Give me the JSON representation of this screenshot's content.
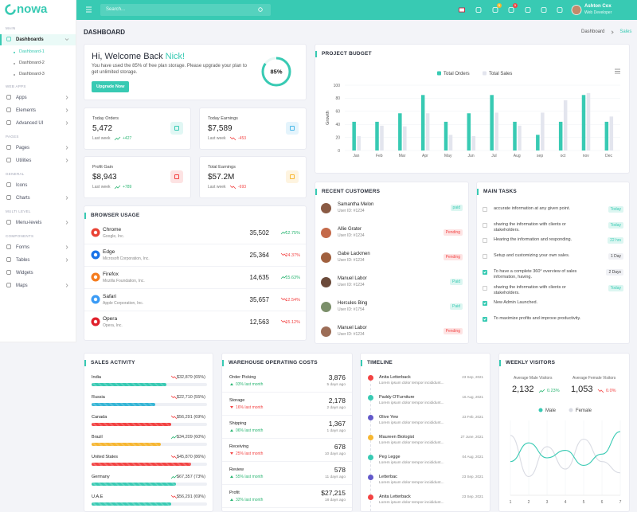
{
  "header": {
    "logo": "nowa",
    "search": "Search...",
    "cart_badge": "5",
    "notif_badge": "5",
    "user_name": "Ashton Cox",
    "user_role": "Web Developer"
  },
  "sidebar": {
    "sections": [
      {
        "title": "MAIN",
        "items": [
          {
            "label": "Dashboards",
            "chevron": true,
            "sub": [
              "Dashboard-1",
              "Dashboard-2",
              "Dashboard-3"
            ]
          }
        ]
      },
      {
        "title": "WEB APPS",
        "items": [
          {
            "label": "Apps",
            "chevron": true
          },
          {
            "label": "Elements",
            "chevron": true
          },
          {
            "label": "Advanced UI",
            "chevron": true
          }
        ]
      },
      {
        "title": "PAGES",
        "items": [
          {
            "label": "Pages",
            "chevron": true
          },
          {
            "label": "Utilities",
            "chevron": true
          }
        ]
      },
      {
        "title": "GENERAL",
        "items": [
          {
            "label": "Icons",
            "chevron": false
          },
          {
            "label": "Charts",
            "chevron": true
          }
        ]
      },
      {
        "title": "MULTI LEVEL",
        "items": [
          {
            "label": "Menu-levels",
            "chevron": true
          }
        ]
      },
      {
        "title": "COMPONENTS",
        "items": [
          {
            "label": "Forms",
            "chevron": true
          },
          {
            "label": "Tables",
            "chevron": true
          },
          {
            "label": "Widgets",
            "chevron": false
          },
          {
            "label": "Maps",
            "chevron": true
          }
        ]
      }
    ]
  },
  "page": {
    "title": "DASHBOARD",
    "breadcrumb": [
      "Dashboard",
      "Sales"
    ]
  },
  "welcome": {
    "greeting": "Hi, Welcome Back",
    "name": "Nick!",
    "text": "You have used the 85% of free plan storage. Please upgrade your plan to get unlimited storage.",
    "button": "Upgrade Now",
    "progress": 85,
    "progress_label": "85%"
  },
  "stats": [
    {
      "title": "Today Orders",
      "value": "5,472",
      "period": "Last week",
      "change": "+427",
      "trend": "up",
      "icon_color": "#38cab3"
    },
    {
      "title": "Today Earnings",
      "value": "$7,589",
      "period": "Last week",
      "change": "-453",
      "trend": "down",
      "icon_color": "#4ab8e8"
    },
    {
      "title": "Profit Gain",
      "value": "$8,943",
      "period": "Last week",
      "change": "+789",
      "trend": "up",
      "icon_color": "#f34343"
    },
    {
      "title": "Total Earnings",
      "value": "$57.2M",
      "period": "Last week",
      "change": "-693",
      "trend": "down",
      "icon_color": "#f7b731"
    }
  ],
  "chart_data": [
    {
      "type": "bar",
      "title": "PROJECT BUDGET",
      "categories": [
        "Jan",
        "Feb",
        "Mar",
        "Apr",
        "May",
        "Jun",
        "Jul",
        "Aug",
        "sep",
        "oct",
        "nov",
        "Dec"
      ],
      "series": [
        {
          "name": "Total Orders",
          "color": "#38cab3",
          "values": [
            44,
            44,
            57,
            85,
            44,
            57,
            85,
            44,
            24,
            44,
            85,
            44
          ]
        },
        {
          "name": "Total Sales",
          "color": "#e3e5ee",
          "values": [
            22,
            38,
            37,
            57,
            24,
            22,
            58,
            38,
            58,
            77,
            88,
            52
          ]
        }
      ],
      "ylim": [
        0,
        100
      ],
      "yticks": [
        0,
        20,
        40,
        60,
        80,
        100
      ],
      "ylabel": "Growth",
      "grid": true
    },
    {
      "type": "line",
      "title": "WEEKLY VISITORS",
      "x": [
        1,
        2,
        3,
        4,
        5,
        6,
        7
      ],
      "series": [
        {
          "name": "Male",
          "color": "#38cab3",
          "values": [
            45,
            70,
            50,
            60,
            40,
            55,
            85
          ]
        },
        {
          "name": "Female",
          "color": "#d9dbe3",
          "values": [
            80,
            25,
            65,
            35,
            75,
            45,
            30
          ]
        }
      ],
      "xlim": [
        1,
        7
      ],
      "xticks": [
        1,
        2,
        3,
        4,
        5,
        6,
        7
      ],
      "ylim": [
        0,
        100
      ],
      "grid": true
    }
  ],
  "browser_usage": {
    "title": "BROWSER USAGE",
    "rows": [
      {
        "name": "Chrome",
        "company": "Google, Inc.",
        "count": "35,502",
        "change": "12.75%",
        "trend": "up",
        "color": "#e94335"
      },
      {
        "name": "Edge",
        "company": "Microsoft Corporation, Inc.",
        "count": "25,364",
        "change": "24.37%",
        "trend": "down",
        "color": "#1a73e8"
      },
      {
        "name": "Firefox",
        "company": "Mozilla Foundation, Inc.",
        "count": "14,635",
        "change": "15.63%",
        "trend": "up",
        "color": "#f57c1f"
      },
      {
        "name": "Safari",
        "company": "Apple Corporation, Inc.",
        "count": "35,657",
        "change": "12.54%",
        "trend": "down",
        "color": "#3b9bf5"
      },
      {
        "name": "Opera",
        "company": "Opera, Inc.",
        "count": "12,563",
        "change": "15.12%",
        "trend": "down",
        "color": "#e0202b"
      }
    ]
  },
  "recent_customers": {
    "title": "RECENT CUSTOMERS",
    "rows": [
      {
        "name": "Samantha Melon",
        "id": "User ID: #1234",
        "status": "paid"
      },
      {
        "name": "Allie Grater",
        "id": "User ID: #1234",
        "status": "Pending"
      },
      {
        "name": "Gabe Lackmen",
        "id": "User ID: #1234",
        "status": "Pending"
      },
      {
        "name": "Manuel Labor",
        "id": "User ID: #1234",
        "status": "Paid"
      },
      {
        "name": "Hercules Bing",
        "id": "User ID: #1754",
        "status": "Paid"
      },
      {
        "name": "Manuel Labor",
        "id": "User ID: #1234",
        "status": "Pending"
      }
    ]
  },
  "main_tasks": {
    "title": "MAIN TASKS",
    "rows": [
      {
        "text": "accurate information at any given point.",
        "badge": "Today",
        "checked": false
      },
      {
        "text": "sharing the information with clients or stakeholders.",
        "badge": "Today",
        "checked": false
      },
      {
        "text": "Hearing the information and responding.",
        "badge": "22 hrs",
        "checked": false
      },
      {
        "text": "Setup and customizing your own sales.",
        "badge": "1 Day",
        "checked": false
      },
      {
        "text": "To have a complete 360° overview of sales information, having.",
        "badge": "2 Days",
        "checked": true
      },
      {
        "text": "sharing the information with clients or stakeholders.",
        "badge": "Today",
        "checked": false
      },
      {
        "text": "New Admin Launched.",
        "checked": true
      },
      {
        "text": "To maximize profits and improve productivity.",
        "checked": true
      }
    ]
  },
  "sales_activity": {
    "title": "SALES ACTIVITY",
    "rows": [
      {
        "country": "India",
        "label": "$32,879 (65%)",
        "percent": 65,
        "trend": "down",
        "color": "#38cab3"
      },
      {
        "country": "Russia",
        "label": "$22,710 (55%)",
        "percent": 55,
        "trend": "down",
        "color": "#36b6d6"
      },
      {
        "country": "Canada",
        "label": "$56,291 (69%)",
        "percent": 69,
        "trend": "down",
        "color": "#f34343"
      },
      {
        "country": "Brazil",
        "label": "$34,209 (60%)",
        "percent": 60,
        "trend": "up",
        "color": "#f7b731"
      },
      {
        "country": "United States",
        "label": "$45,870 (86%)",
        "percent": 86,
        "trend": "down",
        "color": "#f34343"
      },
      {
        "country": "Germany",
        "label": "$67,357 (73%)",
        "percent": 73,
        "trend": "up",
        "color": "#38cab3"
      },
      {
        "country": "U.A.E",
        "label": "$56,291 (69%)",
        "percent": 69,
        "trend": "down",
        "color": "#38cab3"
      }
    ]
  },
  "warehouse": {
    "title": "WAREHOUSE OPERATING COSTS",
    "rows": [
      {
        "name": "Order Picking",
        "value": "3,876",
        "ago": "5 days ago",
        "change": "03% last month",
        "trend": "up"
      },
      {
        "name": "Storage",
        "value": "2,178",
        "ago": "2 days ago",
        "change": "16% last month",
        "trend": "down"
      },
      {
        "name": "Shipping",
        "value": "1,367",
        "ago": "1 days ago",
        "change": "06% last month",
        "trend": "up"
      },
      {
        "name": "Receiving",
        "value": "678",
        "ago": "10 days ago",
        "change": "25% last month",
        "trend": "down"
      },
      {
        "name": "Review",
        "value": "578",
        "ago": "11 days ago",
        "change": "55% last month",
        "trend": "up"
      },
      {
        "name": "Profit",
        "value": "$27,215",
        "ago": "18 days ago",
        "change": "32% last month",
        "trend": "up"
      }
    ]
  },
  "timeline": {
    "title": "TIMELINE",
    "rows": [
      {
        "name": "Anita Letterback",
        "date": "23 Sep, 2021",
        "text": "Lorem ipsum dolor tempor incididunt...",
        "color": "#f34343"
      },
      {
        "name": "Paddy O'Furniture",
        "date": "16 Aug, 2021",
        "text": "Lorem ipsum dolor tempor incididunt...",
        "color": "#38cab3"
      },
      {
        "name": "Olive Yew",
        "date": "23 Feb, 2021",
        "text": "Lorem ipsum dolor tempor incididunt...",
        "color": "#6259ca"
      },
      {
        "name": "Maureen Biologist",
        "date": "27 June, 2021",
        "text": "Lorem ipsum dolor tempor incididunt...",
        "color": "#f7b731"
      },
      {
        "name": "Peg Legge",
        "date": "04 Aug, 2021",
        "text": "Lorem ipsum dolor tempor incididunt...",
        "color": "#38cab3"
      },
      {
        "name": "Letterbac",
        "date": "23 Sep, 2021",
        "text": "Lorem ipsum dolor tempor incididunt...",
        "color": "#6259ca"
      },
      {
        "name": "Anita Letterback",
        "date": "23 Sep, 2021",
        "text": "Lorem ipsum dolor tempor incididunt...",
        "color": "#f34343"
      }
    ]
  },
  "weekly_visitors": {
    "stats": [
      {
        "title": "Average Male Visitors",
        "value": "2,132",
        "change": "0.23%",
        "trend": "up"
      },
      {
        "title": "Average Female Visitors",
        "value": "1,053",
        "change": "0.0%",
        "trend": "down"
      }
    ]
  }
}
